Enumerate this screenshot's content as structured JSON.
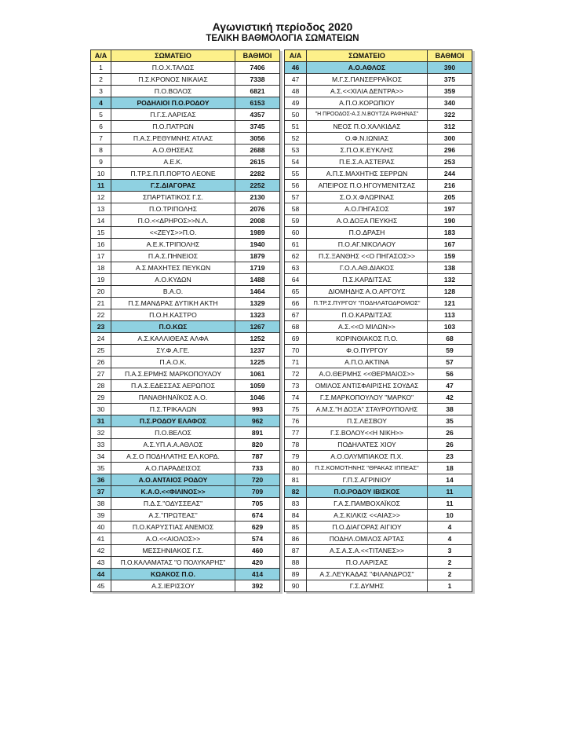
{
  "title": "Αγωνιστική περίοδος 2020",
  "subtitle": "ΤΕΛΙΚΗ ΒΑΘΜΟΛΟΓΙΑ ΣΩΜΑΤΕΙΩΝ",
  "columns": [
    "Α/Α",
    "ΣΩΜΑΤΕΙΟ",
    "ΒΑΘΜΟΙ"
  ],
  "colors": {
    "header": "#fdf08a",
    "highlight": "#8fd1e1"
  },
  "left_rows": [
    {
      "rank": "1",
      "club": "Π.Ο.Χ.ΤΑΛΩΣ",
      "points": "7406"
    },
    {
      "rank": "2",
      "club": "Π.Σ.ΚΡΟΝΟΣ ΝΙΚΑΙΑΣ",
      "points": "7338"
    },
    {
      "rank": "3",
      "club": "Π.Ο.ΒΟΛΟΣ",
      "points": "6821"
    },
    {
      "rank": "4",
      "club": "ΡΟΔΗΛΙΟΙ Π.Ο.ΡΟΔΟΥ",
      "points": "6153",
      "highlight": true
    },
    {
      "rank": "5",
      "club": "Π.Γ.Σ.ΛΑΡΙΣΑΣ",
      "points": "4357"
    },
    {
      "rank": "6",
      "club": "Π.Ο.ΠΑΤΡΩΝ",
      "points": "3745"
    },
    {
      "rank": "7",
      "club": "Π.Α.Σ.ΡΕΘΥΜΝΗΣ ΑΤΛΑΣ",
      "points": "3056"
    },
    {
      "rank": "8",
      "club": "Α.Ο.ΘΗΣΕΑΣ",
      "points": "2688"
    },
    {
      "rank": "9",
      "club": "Α.Ε.Κ.",
      "points": "2615"
    },
    {
      "rank": "10",
      "club": "Π.ΤΡ.Σ.Π.Π.ΠΟΡΤΟ ΛΕΟΝΕ",
      "points": "2282"
    },
    {
      "rank": "11",
      "club": "Γ.Σ.ΔΙΑΓΟΡΑΣ",
      "points": "2252",
      "highlight": true
    },
    {
      "rank": "12",
      "club": "ΣΠΑΡΤΙΑΤΙΚΟΣ Γ.Σ.",
      "points": "2130"
    },
    {
      "rank": "13",
      "club": "Π.Ο.ΤΡΙΠΟΛΗΣ",
      "points": "2076"
    },
    {
      "rank": "14",
      "club": "Π.Ο.<<ΔΡΗΡΟΣ>>Ν.Λ.",
      "points": "2008"
    },
    {
      "rank": "15",
      "club": "<<ΖΕΥΣ>>Π.Ο.",
      "points": "1989"
    },
    {
      "rank": "16",
      "club": "Α.Ε.Κ.ΤΡΙΠΟΛΗΣ",
      "points": "1940"
    },
    {
      "rank": "17",
      "club": "Π.Α.Σ.ΠΗΝΕΙΟΣ",
      "points": "1879"
    },
    {
      "rank": "18",
      "club": "Α.Σ.ΜΑΧΗΤΕΣ ΠΕΥΚΩΝ",
      "points": "1719"
    },
    {
      "rank": "19",
      "club": "Α.Ο.ΚΥΔΩΝ",
      "points": "1488"
    },
    {
      "rank": "20",
      "club": "Β.Α.Ο.",
      "points": "1464"
    },
    {
      "rank": "21",
      "club": "Π.Σ.ΜΑΝΔΡΑΣ ΔΥΤΙΚΗ ΑΚΤΗ",
      "points": "1329"
    },
    {
      "rank": "22",
      "club": "Π.Ο.Η.ΚΑΣΤΡΟ",
      "points": "1323"
    },
    {
      "rank": "23",
      "club": "Π.Ο.ΚΩΣ",
      "points": "1267",
      "highlight": true
    },
    {
      "rank": "24",
      "club": "Α.Σ.ΚΑΛΛΙΘΕΑΣ ΑΛΦΑ",
      "points": "1252"
    },
    {
      "rank": "25",
      "club": "ΣΥ.Φ.Α.ΓΕ.",
      "points": "1237"
    },
    {
      "rank": "26",
      "club": "Π.Α.Ο.Κ.",
      "points": "1225"
    },
    {
      "rank": "27",
      "club": "Π.Α.Σ.ΕΡΜΗΣ ΜΑΡΚΟΠΟΥΛΟΥ",
      "points": "1061"
    },
    {
      "rank": "28",
      "club": "Π.Α.Σ.ΕΔΕΣΣΑΣ ΑΕΡΩΠΟΣ",
      "points": "1059"
    },
    {
      "rank": "29",
      "club": "ΠΑΝΑΘΗΝΑΪΚΟΣ Α.Ο.",
      "points": "1046"
    },
    {
      "rank": "30",
      "club": "Π.Σ.ΤΡΙΚΑΛΩΝ",
      "points": "993"
    },
    {
      "rank": "31",
      "club": "Π.Σ.ΡΟΔΟΥ ΕΛΑΦΟΣ",
      "points": "962",
      "highlight": true
    },
    {
      "rank": "32",
      "club": "Π.Ο.ΒΕΛΟΣ",
      "points": "891"
    },
    {
      "rank": "33",
      "club": "Α.Σ.ΥΠ.Α.Α.ΑΘΛΟΣ",
      "points": "820"
    },
    {
      "rank": "34",
      "club": "Α.Σ.Ο ΠΟΔΗΛΑΤΗΣ ΕΛ.ΚΟΡΔ.",
      "points": "787"
    },
    {
      "rank": "35",
      "club": "Α.Ο.ΠΑΡΑΔΕΙΣΟΣ",
      "points": "733"
    },
    {
      "rank": "36",
      "club": "Α.Ο.ΑΝΤΑΙΟΣ ΡΟΔΟΥ",
      "points": "720",
      "highlight": true
    },
    {
      "rank": "37",
      "club": "Κ.Α.Ο.<<ΦΙΛΙΝΟΣ>>",
      "points": "709",
      "highlight": true
    },
    {
      "rank": "38",
      "club": "Π.Δ.Σ.\"ΟΔΥΣΣΕΑΣ\"",
      "points": "705"
    },
    {
      "rank": "39",
      "club": "Α.Σ.\"ΠΡΩΤΕΑΣ\"",
      "points": "674"
    },
    {
      "rank": "40",
      "club": "Π.Ο.ΚΑΡΥΣΤΙΑΣ ΑΝΕΜΟΣ",
      "points": "629"
    },
    {
      "rank": "41",
      "club": "Α.Ο.<<ΑΙΟΛΟΣ>>",
      "points": "574"
    },
    {
      "rank": "42",
      "club": "ΜΕΣΣΗΝΙΑΚΟΣ Γ.Σ.",
      "points": "460"
    },
    {
      "rank": "43",
      "club": "Π.Ο.ΚΑΛΑΜΑΤΑΣ \"Ο ΠΟΛΥΚΑΡΗΣ\"",
      "points": "420"
    },
    {
      "rank": "44",
      "club": "ΚΩΑΚΟΣ Π.Ο.",
      "points": "414",
      "highlight": true
    },
    {
      "rank": "45",
      "club": "Α.Σ.ΙΕΡΙΣΣΟΥ",
      "points": "392"
    }
  ],
  "right_rows": [
    {
      "rank": "46",
      "club": "Α.Ο.ΑΘΛΟΣ",
      "points": "390",
      "highlight": true
    },
    {
      "rank": "47",
      "club": "Μ.Γ.Σ.ΠΑΝΣΕΡΡΑΪΚΟΣ",
      "points": "375"
    },
    {
      "rank": "48",
      "club": "Α.Σ.<<ΧΙΛΙΑ ΔΕΝΤΡΑ>>",
      "points": "359"
    },
    {
      "rank": "49",
      "club": "Α.Π.Ο.ΚΟΡΩΠΙΟΥ",
      "points": "340"
    },
    {
      "rank": "50",
      "club": "\"Η ΠΡΟΟΔΟΣ-Α.Σ.Ν.ΒΟΥΤΖΑ ΡΑΦΗΝΑΣ\"",
      "points": "322"
    },
    {
      "rank": "51",
      "club": "ΝΕΟΣ Π.Ο.ΧΑΛΚΙΔΑΣ",
      "points": "312"
    },
    {
      "rank": "52",
      "club": "Ο.Φ.Ν.ΙΩΝΙΑΣ",
      "points": "300"
    },
    {
      "rank": "53",
      "club": "Σ.Π.Ο.Κ.ΕΥΚΛΗΣ",
      "points": "296"
    },
    {
      "rank": "54",
      "club": "Π.Ε.Σ.Α.ΑΣΤΕΡΑΣ",
      "points": "253"
    },
    {
      "rank": "55",
      "club": "Α.Π.Σ.ΜΑΧΗΤΗΣ ΣΕΡΡΩΝ",
      "points": "244"
    },
    {
      "rank": "56",
      "club": "ΑΠΕΙΡΟΣ Π.Ο.ΗΓΟΥΜΕΝΙΤΣΑΣ",
      "points": "216"
    },
    {
      "rank": "57",
      "club": "Σ.Ο.Χ.ΦΛΩΡΙΝΑΣ",
      "points": "205"
    },
    {
      "rank": "58",
      "club": "Α.Ο.ΠΗΓΑΣΟΣ",
      "points": "197"
    },
    {
      "rank": "59",
      "club": "Α.Ο.ΔΟΞΑ ΠΕΥΚΗΣ",
      "points": "190"
    },
    {
      "rank": "60",
      "club": "Π.Ο.ΔΡΑΣΗ",
      "points": "183"
    },
    {
      "rank": "61",
      "club": "Π.Ο.ΑΓ.ΝΙΚΟΛΑΟΥ",
      "points": "167"
    },
    {
      "rank": "62",
      "club": "Π.Σ.ΞΑΝΘΗΣ <<Ο ΠΗΓΑΣΟΣ>>",
      "points": "159"
    },
    {
      "rank": "63",
      "club": "Γ.Ο.Λ.ΑΘ.ΔΙΑΚΟΣ",
      "points": "138"
    },
    {
      "rank": "64",
      "club": "Π.Σ.ΚΑΡΔΙΤΣΑΣ",
      "points": "132"
    },
    {
      "rank": "65",
      "club": "ΔΙΟΜΗΔΗΣ Α.Ο.ΑΡΓΟΥΣ",
      "points": "128"
    },
    {
      "rank": "66",
      "club": "Π.ΤΡ.Σ.ΠΥΡΓΟΥ \"ΠΟΔΗΛΑΤΟΔΡΟΜΟΣ\"",
      "points": "121"
    },
    {
      "rank": "67",
      "club": "Π.Ο.ΚΑΡΔΙΤΣΑΣ",
      "points": "113"
    },
    {
      "rank": "68",
      "club": "Α.Σ.<<Ο ΜΙΛΩΝ>>",
      "points": "103"
    },
    {
      "rank": "69",
      "club": "ΚΟΡΙΝΘΙΑΚΟΣ Π.Ο.",
      "points": "68"
    },
    {
      "rank": "70",
      "club": "Φ.Ο.ΠΥΡΓΟΥ",
      "points": "59"
    },
    {
      "rank": "71",
      "club": "Α.Π.Ο.ΑΚΤΙΝΑ",
      "points": "57"
    },
    {
      "rank": "72",
      "club": "Α.Ο.ΘΕΡΜΗΣ <<ΘΕΡΜΑΙΟΣ>>",
      "points": "56"
    },
    {
      "rank": "73",
      "club": "ΟΜΙΛΟΣ ΑΝΤΙΣΦΑΙΡΙΣΗΣ ΣΟΥΔΑΣ",
      "points": "47"
    },
    {
      "rank": "74",
      "club": "Γ.Σ.ΜΑΡΚΟΠΟΥΛΟΥ \"ΜΑΡΚΟ\"",
      "points": "42"
    },
    {
      "rank": "75",
      "club": "Α.Μ.Σ.\"Η ΔΟΞΑ\" ΣΤΑΥΡΟΥΠΟΛΗΣ",
      "points": "38"
    },
    {
      "rank": "76",
      "club": "Π.Σ.ΛΕΣΒΟΥ",
      "points": "35"
    },
    {
      "rank": "77",
      "club": "Γ.Σ.ΒΟΛΟΥ<<Η ΝΙΚΗ>>",
      "points": "26"
    },
    {
      "rank": "78",
      "club": "ΠΟΔΗΛΑΤΕΣ ΧΙΟΥ",
      "points": "26"
    },
    {
      "rank": "79",
      "club": "Α.Ο.ΟΛΥΜΠΙΑΚΟΣ Π.Χ.",
      "points": "23"
    },
    {
      "rank": "80",
      "club": "Π.Σ.ΚΟΜΟΤΗΝΗΣ \"ΘΡΑΚΑΣ ΙΠΠΕΑΣ\"",
      "points": "18"
    },
    {
      "rank": "81",
      "club": "Γ.Π.Σ.ΑΓΡΙΝΙΟΥ",
      "points": "14"
    },
    {
      "rank": "82",
      "club": "Π.Ο.ΡΟΔΟΥ ΙΒΙΣΚΟΣ",
      "points": "11",
      "highlight": true
    },
    {
      "rank": "83",
      "club": "Γ.Α.Σ.ΠΑΜΒΟΧΑΪΚΟΣ",
      "points": "11"
    },
    {
      "rank": "84",
      "club": "Α.Σ.ΚΙΛΚΙΣ <<ΑΙΑΣ>>",
      "points": "10"
    },
    {
      "rank": "85",
      "club": "Π.Ο.ΔΙΑΓΟΡΑΣ ΑΙΓΙΟΥ",
      "points": "4"
    },
    {
      "rank": "86",
      "club": "ΠΟΔΗΛ.ΟΜΙΛΟΣ ΑΡΤΑΣ",
      "points": "4"
    },
    {
      "rank": "87",
      "club": "Α.Σ.Α.Σ.Α.<<ΤΙΤΑΝΕΣ>>",
      "points": "3"
    },
    {
      "rank": "88",
      "club": "Π.Ο.ΛΑΡΙΣΑΣ",
      "points": "2"
    },
    {
      "rank": "89",
      "club": "Α.Σ.ΛΕΥΚΑΔΑΣ \"ΦΙΛΑΝΔΡΟΣ\"",
      "points": "2"
    },
    {
      "rank": "90",
      "club": "Γ.Σ.ΔΥΜΗΣ",
      "points": "1"
    }
  ]
}
